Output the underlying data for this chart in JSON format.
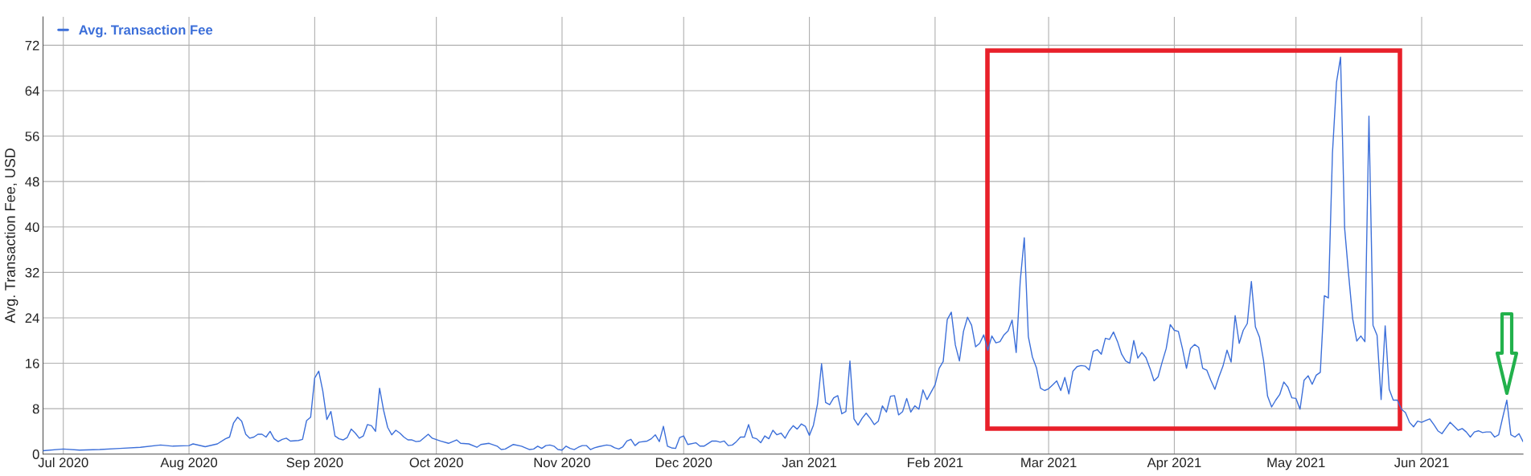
{
  "chart_data": {
    "type": "line",
    "ylabel": "Avg. Transaction Fee, USD",
    "xlim": [
      "2020-06-26",
      "2021-06-26"
    ],
    "xticks": [
      {
        "value": "2020-07-01",
        "label": "Jul 2020"
      },
      {
        "value": "2020-08-01",
        "label": "Aug 2020"
      },
      {
        "value": "2020-09-01",
        "label": "Sep 2020"
      },
      {
        "value": "2020-10-01",
        "label": "Oct 2020"
      },
      {
        "value": "2020-11-01",
        "label": "Nov 2020"
      },
      {
        "value": "2020-12-01",
        "label": "Dec 2020"
      },
      {
        "value": "2021-01-01",
        "label": "Jan 2021"
      },
      {
        "value": "2021-02-01",
        "label": "Feb 2021"
      },
      {
        "value": "2021-03-01",
        "label": "Mar 2021"
      },
      {
        "value": "2021-04-01",
        "label": "Apr 2021"
      },
      {
        "value": "2021-05-01",
        "label": "May 2021"
      },
      {
        "value": "2021-06-01",
        "label": "Jun 2021"
      }
    ],
    "ylim": [
      0,
      77
    ],
    "yticks": [
      0,
      8,
      16,
      24,
      32,
      40,
      48,
      56,
      64,
      72
    ],
    "grid": true,
    "legend": "top left",
    "series": [
      {
        "name": "Avg. Transaction Fee",
        "color": "#3c6fd9",
        "x": [
          "2020-06-26",
          "2020-07-01",
          "2020-07-05",
          "2020-07-10",
          "2020-07-15",
          "2020-07-20",
          "2020-07-25",
          "2020-07-28",
          "2020-08-01",
          "2020-08-02",
          "2020-08-05",
          "2020-08-08",
          "2020-08-10",
          "2020-08-11",
          "2020-08-12",
          "2020-08-13",
          "2020-08-14",
          "2020-08-15",
          "2020-08-16",
          "2020-08-17",
          "2020-08-18",
          "2020-08-19",
          "2020-08-20",
          "2020-08-21",
          "2020-08-22",
          "2020-08-23",
          "2020-08-24",
          "2020-08-25",
          "2020-08-26",
          "2020-08-28",
          "2020-08-29",
          "2020-08-30",
          "2020-08-31",
          "2020-09-01",
          "2020-09-02",
          "2020-09-03",
          "2020-09-04",
          "2020-09-05",
          "2020-09-06",
          "2020-09-07",
          "2020-09-08",
          "2020-09-09",
          "2020-09-10",
          "2020-09-11",
          "2020-09-12",
          "2020-09-13",
          "2020-09-14",
          "2020-09-15",
          "2020-09-16",
          "2020-09-17",
          "2020-09-18",
          "2020-09-19",
          "2020-09-20",
          "2020-09-21",
          "2020-09-22",
          "2020-09-23",
          "2020-09-24",
          "2020-09-25",
          "2020-09-26",
          "2020-09-27",
          "2020-09-29",
          "2020-09-30",
          "2020-10-02",
          "2020-10-04",
          "2020-10-06",
          "2020-10-07",
          "2020-10-09",
          "2020-10-11",
          "2020-10-12",
          "2020-10-14",
          "2020-10-16",
          "2020-10-17",
          "2020-10-18",
          "2020-10-20",
          "2020-10-22",
          "2020-10-24",
          "2020-10-25",
          "2020-10-26",
          "2020-10-27",
          "2020-10-28",
          "2020-10-29",
          "2020-10-30",
          "2020-10-31",
          "2020-11-01",
          "2020-11-02",
          "2020-11-03",
          "2020-11-04",
          "2020-11-05",
          "2020-11-06",
          "2020-11-07",
          "2020-11-08",
          "2020-11-09",
          "2020-11-10",
          "2020-11-12",
          "2020-11-13",
          "2020-11-14",
          "2020-11-15",
          "2020-11-16",
          "2020-11-17",
          "2020-11-18",
          "2020-11-19",
          "2020-11-20",
          "2020-11-22",
          "2020-11-23",
          "2020-11-24",
          "2020-11-25",
          "2020-11-26",
          "2020-11-27",
          "2020-11-28",
          "2020-11-29",
          "2020-11-30",
          "2020-12-01",
          "2020-12-02",
          "2020-12-04",
          "2020-12-05",
          "2020-12-06",
          "2020-12-08",
          "2020-12-09",
          "2020-12-10",
          "2020-12-11",
          "2020-12-12",
          "2020-12-13",
          "2020-12-14",
          "2020-12-15",
          "2020-12-16",
          "2020-12-17",
          "2020-12-18",
          "2020-12-19",
          "2020-12-20",
          "2020-12-21",
          "2020-12-22",
          "2020-12-23",
          "2020-12-24",
          "2020-12-25",
          "2020-12-26",
          "2020-12-27",
          "2020-12-28",
          "2020-12-29",
          "2020-12-30",
          "2020-12-31",
          "2021-01-01",
          "2021-01-02",
          "2021-01-03",
          "2021-01-04",
          "2021-01-05",
          "2021-01-06",
          "2021-01-07",
          "2021-01-08",
          "2021-01-09",
          "2021-01-10",
          "2021-01-11",
          "2021-01-12",
          "2021-01-13",
          "2021-01-14",
          "2021-01-15",
          "2021-01-16",
          "2021-01-17",
          "2021-01-18",
          "2021-01-19",
          "2021-01-20",
          "2021-01-21",
          "2021-01-22",
          "2021-01-23",
          "2021-01-24",
          "2021-01-25",
          "2021-01-26",
          "2021-01-27",
          "2021-01-28",
          "2021-01-29",
          "2021-01-30",
          "2021-01-31",
          "2021-02-01",
          "2021-02-02",
          "2021-02-03",
          "2021-02-04",
          "2021-02-05",
          "2021-02-06",
          "2021-02-07",
          "2021-02-08",
          "2021-02-09",
          "2021-02-10",
          "2021-02-11",
          "2021-02-12",
          "2021-02-13",
          "2021-02-14",
          "2021-02-15",
          "2021-02-16",
          "2021-02-17",
          "2021-02-18",
          "2021-02-19",
          "2021-02-20",
          "2021-02-21",
          "2021-02-22",
          "2021-02-23",
          "2021-02-24",
          "2021-02-25",
          "2021-02-26",
          "2021-02-27",
          "2021-02-28",
          "2021-03-01",
          "2021-03-02",
          "2021-03-03",
          "2021-03-04",
          "2021-03-05",
          "2021-03-06",
          "2021-03-07",
          "2021-03-08",
          "2021-03-09",
          "2021-03-10",
          "2021-03-11",
          "2021-03-12",
          "2021-03-13",
          "2021-03-14",
          "2021-03-15",
          "2021-03-16",
          "2021-03-17",
          "2021-03-18",
          "2021-03-19",
          "2021-03-20",
          "2021-03-21",
          "2021-03-22",
          "2021-03-23",
          "2021-03-24",
          "2021-03-25",
          "2021-03-26",
          "2021-03-27",
          "2021-03-28",
          "2021-03-29",
          "2021-03-30",
          "2021-03-31",
          "2021-04-01",
          "2021-04-02",
          "2021-04-03",
          "2021-04-04",
          "2021-04-05",
          "2021-04-06",
          "2021-04-07",
          "2021-04-08",
          "2021-04-09",
          "2021-04-10",
          "2021-04-11",
          "2021-04-12",
          "2021-04-13",
          "2021-04-14",
          "2021-04-15",
          "2021-04-16",
          "2021-04-17",
          "2021-04-18",
          "2021-04-19",
          "2021-04-20",
          "2021-04-21",
          "2021-04-22",
          "2021-04-23",
          "2021-04-24",
          "2021-04-25",
          "2021-04-26",
          "2021-04-27",
          "2021-04-28",
          "2021-04-29",
          "2021-04-30",
          "2021-05-01",
          "2021-05-02",
          "2021-05-03",
          "2021-05-04",
          "2021-05-05",
          "2021-05-06",
          "2021-05-07",
          "2021-05-08",
          "2021-05-09",
          "2021-05-10",
          "2021-05-11",
          "2021-05-12",
          "2021-05-13",
          "2021-05-14",
          "2021-05-15",
          "2021-05-16",
          "2021-05-17",
          "2021-05-18",
          "2021-05-19",
          "2021-05-20",
          "2021-05-21",
          "2021-05-22",
          "2021-05-23",
          "2021-05-24",
          "2021-05-25",
          "2021-05-26",
          "2021-05-27",
          "2021-05-28",
          "2021-05-29",
          "2021-05-30",
          "2021-05-31",
          "2021-06-01",
          "2021-06-02",
          "2021-06-03",
          "2021-06-04",
          "2021-06-05",
          "2021-06-06",
          "2021-06-07",
          "2021-06-08",
          "2021-06-09",
          "2021-06-10",
          "2021-06-11",
          "2021-06-12",
          "2021-06-13",
          "2021-06-14",
          "2021-06-15",
          "2021-06-16",
          "2021-06-17",
          "2021-06-18",
          "2021-06-19",
          "2021-06-20",
          "2021-06-21",
          "2021-06-22",
          "2021-06-23",
          "2021-06-24",
          "2021-06-25",
          "2021-06-26"
        ],
        "values": [
          0.6,
          0.9,
          0.7,
          0.8,
          1.0,
          1.2,
          1.6,
          1.4,
          1.5,
          1.8,
          1.3,
          1.8,
          2.7,
          3.0,
          5.5,
          6.5,
          5.8,
          3.5,
          2.8,
          3.0,
          3.5,
          3.5,
          3.0,
          4.0,
          2.7,
          2.2,
          2.6,
          2.8,
          2.3,
          2.4,
          2.6,
          5.9,
          6.5,
          13.4,
          14.6,
          11.1,
          6.1,
          7.5,
          3.2,
          2.7,
          2.5,
          2.9,
          4.4,
          3.7,
          2.8,
          3.2,
          5.2,
          5.0,
          4.0,
          11.6,
          7.7,
          4.7,
          3.4,
          4.2,
          3.7,
          3.0,
          2.5,
          2.5,
          2.2,
          2.3,
          3.5,
          2.8,
          2.3,
          1.9,
          2.5,
          1.9,
          1.8,
          1.2,
          1.7,
          1.9,
          1.4,
          0.8,
          0.9,
          1.7,
          1.4,
          0.8,
          0.9,
          1.4,
          1.0,
          1.5,
          1.6,
          1.4,
          0.8,
          0.7,
          1.4,
          1.0,
          0.8,
          1.2,
          1.5,
          1.5,
          0.8,
          1.1,
          1.3,
          1.6,
          1.5,
          1.1,
          0.9,
          1.3,
          2.3,
          2.6,
          1.5,
          2.1,
          2.3,
          2.7,
          3.4,
          2.2,
          4.9,
          1.4,
          1.1,
          1.0,
          2.9,
          3.2,
          1.7,
          2.0,
          1.4,
          1.4,
          2.3,
          2.3,
          2.1,
          2.3,
          1.5,
          1.6,
          2.2,
          3.0,
          3.0,
          5.2,
          2.9,
          2.7,
          2.0,
          3.2,
          2.7,
          4.2,
          3.4,
          3.7,
          2.8,
          4.1,
          5.0,
          4.4,
          5.3,
          4.9,
          3.3,
          5.1,
          8.8,
          15.9,
          9.1,
          8.7,
          9.9,
          10.3,
          7.1,
          7.5,
          16.4,
          6.2,
          5.1,
          6.3,
          7.2,
          6.3,
          5.2,
          5.8,
          8.5,
          7.4,
          10.2,
          10.3,
          6.9,
          7.5,
          9.8,
          7.4,
          8.5,
          7.9,
          11.3,
          9.6,
          10.9,
          12.2,
          15.1,
          16.3,
          23.7,
          25.0,
          19.2,
          16.4,
          21.6,
          24.1,
          22.7,
          18.9,
          19.5,
          21.0,
          18.3,
          20.8,
          19.6,
          19.8,
          21.0,
          21.7,
          23.6,
          17.9,
          30.5,
          38.1,
          20.7,
          17.1,
          15.2,
          11.6,
          11.2,
          11.5,
          12.2,
          12.9,
          11.2,
          13.5,
          10.6,
          14.6,
          15.4,
          15.6,
          15.5,
          14.8,
          18.1,
          18.4,
          17.6,
          20.4,
          20.2,
          21.5,
          19.8,
          17.6,
          16.4,
          16.0,
          20.0,
          16.9,
          17.9,
          17.0,
          15.1,
          12.9,
          13.6,
          16.2,
          18.6,
          22.8,
          21.8,
          21.6,
          18.6,
          15.1,
          18.6,
          19.3,
          18.8,
          15.1,
          14.8,
          13.0,
          11.4,
          13.6,
          15.5,
          18.3,
          16.2,
          24.4,
          19.5,
          21.8,
          23.0,
          30.4,
          22.4,
          20.6,
          16.5,
          10.2,
          8.3,
          9.5,
          10.5,
          12.7,
          11.8,
          9.9,
          9.8,
          7.9,
          13.0,
          13.8,
          12.3,
          13.9,
          14.4,
          27.9,
          27.5,
          53.0,
          65.5,
          69.9,
          39.8,
          31.5,
          23.8,
          19.9,
          20.8,
          19.8,
          59.5,
          22.7,
          20.9,
          9.6,
          22.6,
          11.4,
          9.5,
          9.5,
          7.9,
          7.3,
          5.6,
          4.8,
          5.8,
          5.6,
          5.9,
          6.2,
          5.2,
          4.1,
          3.6,
          4.6,
          5.6,
          4.9,
          4.2,
          4.5,
          3.9,
          3.0,
          3.9,
          4.1,
          3.8,
          3.9,
          3.9,
          3.0,
          3.4,
          6.5,
          9.5,
          3.4,
          3.0,
          3.6,
          2.2
        ]
      }
    ]
  }
}
